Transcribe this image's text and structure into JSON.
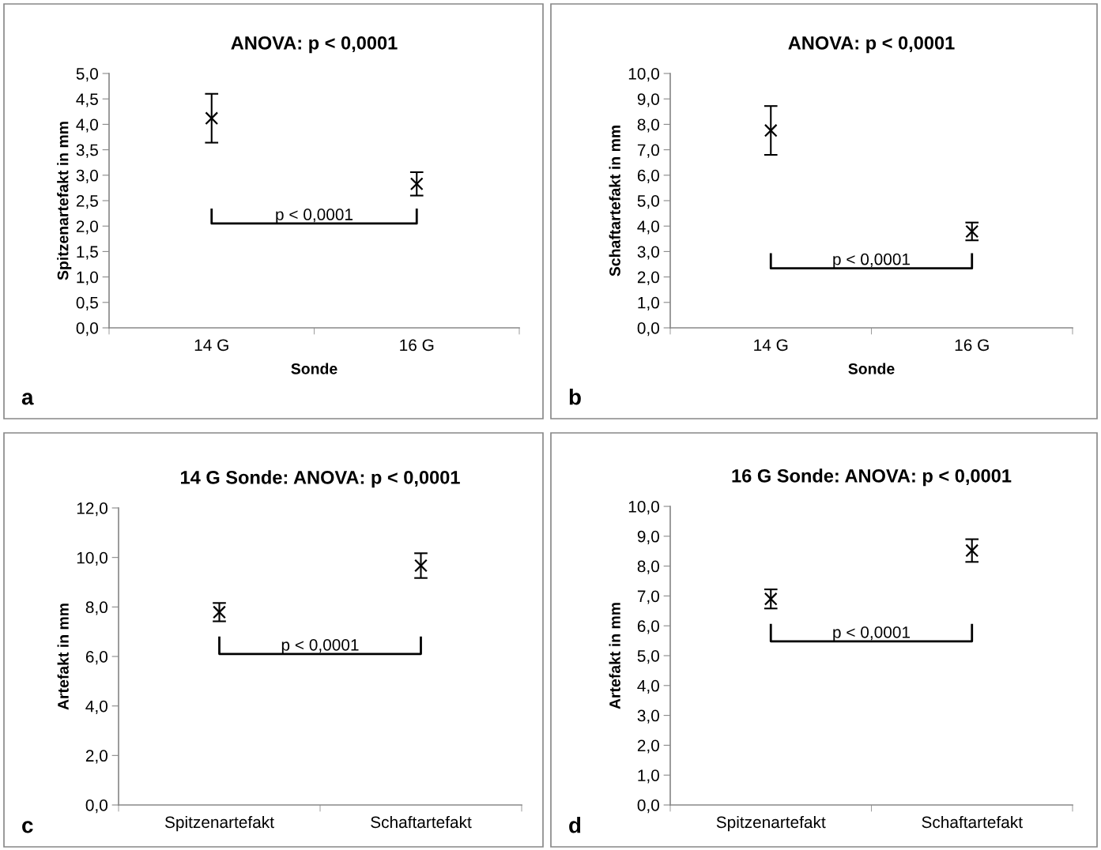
{
  "chart_data": [
    {
      "type": "scatter",
      "title": "ANOVA: p < 0,0001",
      "xlabel": "Sonde",
      "ylabel": "Spitzenartefakt in mm",
      "categories": [
        "14 G",
        "16 G"
      ],
      "values": [
        4.12,
        2.83
      ],
      "errors": [
        0.48,
        0.23
      ],
      "color": "#000000",
      "marker": "cross",
      "ylim": [
        0,
        5
      ],
      "yticks": [
        {
          "value": 0,
          "label": "0,0"
        },
        {
          "value": 0.5,
          "label": "0,5"
        },
        {
          "value": 1,
          "label": "1,0"
        },
        {
          "value": 1.5,
          "label": "1,5"
        },
        {
          "value": 2,
          "label": "2,0"
        },
        {
          "value": 2.5,
          "label": "2,5"
        },
        {
          "value": 3,
          "label": "3,0"
        },
        {
          "value": 3.5,
          "label": "3,5"
        },
        {
          "value": 4,
          "label": "4,0"
        },
        {
          "value": 4.5,
          "label": "4,5"
        },
        {
          "value": 5,
          "label": "5,0"
        }
      ],
      "grid": false,
      "annotations": [
        "p < 0,0001",
        "a"
      ]
    },
    {
      "type": "scatter",
      "title": "ANOVA: p < 0,0001",
      "xlabel": "Sonde",
      "ylabel": "Schaftartefakt in mm",
      "categories": [
        "14 G",
        "16 G"
      ],
      "values": [
        7.76,
        3.79
      ],
      "errors": [
        0.96,
        0.35
      ],
      "color": "#000000",
      "marker": "cross",
      "ylim": [
        0,
        10
      ],
      "yticks": [
        {
          "value": 0,
          "label": "0,0"
        },
        {
          "value": 1,
          "label": "1,0"
        },
        {
          "value": 2,
          "label": "2,0"
        },
        {
          "value": 3,
          "label": "3,0"
        },
        {
          "value": 4,
          "label": "4,0"
        },
        {
          "value": 5,
          "label": "5,0"
        },
        {
          "value": 6,
          "label": "6,0"
        },
        {
          "value": 7,
          "label": "7,0"
        },
        {
          "value": 8,
          "label": "8,0"
        },
        {
          "value": 9,
          "label": "9,0"
        },
        {
          "value": 10,
          "label": "10,0"
        }
      ],
      "grid": false,
      "annotations": [
        "p < 0,0001",
        "b"
      ]
    },
    {
      "type": "scatter",
      "title": "14 G Sonde: ANOVA: p < 0,0001",
      "ylabel": "Artefakt in mm",
      "categories": [
        "Spitzenartefakt",
        "Schaftartefakt"
      ],
      "values": [
        7.79,
        9.67
      ],
      "errors": [
        0.37,
        0.5
      ],
      "color": "#000000",
      "marker": "cross",
      "ylim": [
        0,
        12
      ],
      "yticks": [
        {
          "value": 0,
          "label": "0,0"
        },
        {
          "value": 2,
          "label": "2,0"
        },
        {
          "value": 4,
          "label": "4,0"
        },
        {
          "value": 6,
          "label": "6,0"
        },
        {
          "value": 8,
          "label": "8,0"
        },
        {
          "value": 10,
          "label": "10,0"
        },
        {
          "value": 12,
          "label": "12,0"
        }
      ],
      "grid": false,
      "annotations": [
        "p < 0,0001",
        "c"
      ]
    },
    {
      "type": "scatter",
      "title": "16 G Sonde: ANOVA: p < 0,0001",
      "ylabel": "Artefakt in mm",
      "categories": [
        "Spitzenartefakt",
        "Schaftartefakt"
      ],
      "values": [
        6.9,
        8.52
      ],
      "errors": [
        0.32,
        0.38
      ],
      "color": "#000000",
      "marker": "cross",
      "ylim": [
        0,
        10
      ],
      "yticks": [
        {
          "value": 0,
          "label": "0,0"
        },
        {
          "value": 1,
          "label": "1,0"
        },
        {
          "value": 2,
          "label": "2,0"
        },
        {
          "value": 3,
          "label": "3,0"
        },
        {
          "value": 4,
          "label": "4,0"
        },
        {
          "value": 5,
          "label": "5,0"
        },
        {
          "value": 6,
          "label": "6,0"
        },
        {
          "value": 7,
          "label": "7,0"
        },
        {
          "value": 8,
          "label": "8,0"
        },
        {
          "value": 9,
          "label": "9,0"
        },
        {
          "value": 10,
          "label": "10,0"
        }
      ],
      "grid": false,
      "annotations": [
        "p < 0,0001",
        "d"
      ]
    }
  ]
}
